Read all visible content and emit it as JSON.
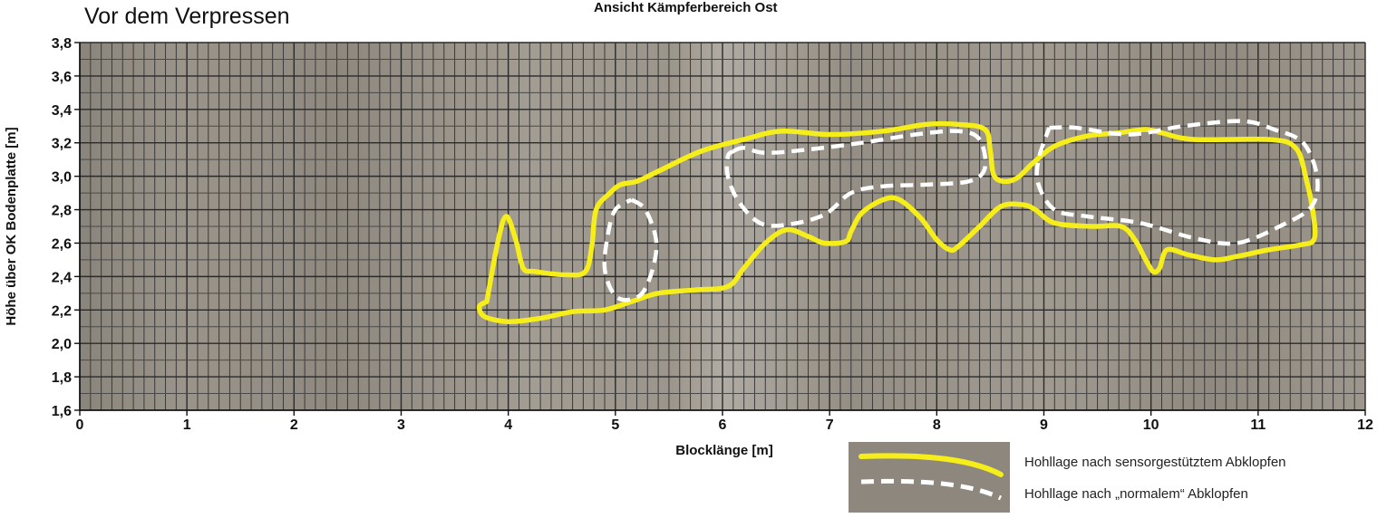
{
  "heading": "Vor dem Verpressen",
  "subtitle": "Ansicht Kämpferbereich Ost",
  "chart_data": {
    "type": "line",
    "title": "Ansicht Kämpferbereich Ost",
    "xlabel": "Blocklänge [m]",
    "ylabel": "Höhe über OK Bodenplatte [m]",
    "xlim": [
      0,
      12
    ],
    "ylim": [
      1.6,
      3.8
    ],
    "x_ticks": [
      "0",
      "1",
      "2",
      "3",
      "4",
      "5",
      "6",
      "7",
      "8",
      "9",
      "10",
      "11",
      "12"
    ],
    "y_ticks": [
      "1,6",
      "1,8",
      "2,0",
      "2,2",
      "2,4",
      "2,6",
      "2,8",
      "3,0",
      "3,2",
      "3,4",
      "3,6",
      "3,8"
    ],
    "grid": true,
    "legend_position": "bottom-right",
    "series": [
      {
        "name": "Hohllage nach sensorgestütztem Abklopfen",
        "color": "#f6ee1a",
        "style": "solid",
        "points": [
          [
            3.8,
            2.25
          ],
          [
            3.9,
            2.6
          ],
          [
            3.98,
            2.76
          ],
          [
            4.07,
            2.62
          ],
          [
            4.14,
            2.45
          ],
          [
            4.25,
            2.43
          ],
          [
            4.55,
            2.41
          ],
          [
            4.72,
            2.43
          ],
          [
            4.78,
            2.58
          ],
          [
            4.82,
            2.8
          ],
          [
            4.95,
            2.9
          ],
          [
            5.05,
            2.95
          ],
          [
            5.2,
            2.97
          ],
          [
            5.4,
            3.03
          ],
          [
            5.8,
            3.15
          ],
          [
            6.2,
            3.22
          ],
          [
            6.55,
            3.27
          ],
          [
            7.0,
            3.25
          ],
          [
            7.5,
            3.27
          ],
          [
            7.9,
            3.31
          ],
          [
            8.2,
            3.31
          ],
          [
            8.45,
            3.28
          ],
          [
            8.5,
            3.15
          ],
          [
            8.53,
            3.01
          ],
          [
            8.62,
            2.97
          ],
          [
            8.75,
            2.99
          ],
          [
            8.9,
            3.08
          ],
          [
            9.1,
            3.18
          ],
          [
            9.4,
            3.24
          ],
          [
            9.7,
            3.26
          ],
          [
            9.95,
            3.28
          ],
          [
            10.1,
            3.26
          ],
          [
            10.4,
            3.22
          ],
          [
            11.1,
            3.22
          ],
          [
            11.35,
            3.17
          ],
          [
            11.45,
            2.98
          ],
          [
            11.52,
            2.75
          ],
          [
            11.52,
            2.62
          ],
          [
            11.4,
            2.59
          ],
          [
            11.1,
            2.56
          ],
          [
            10.8,
            2.52
          ],
          [
            10.6,
            2.5
          ],
          [
            10.35,
            2.53
          ],
          [
            10.15,
            2.56
          ],
          [
            10.08,
            2.45
          ],
          [
            10.02,
            2.43
          ],
          [
            9.95,
            2.5
          ],
          [
            9.85,
            2.62
          ],
          [
            9.72,
            2.7
          ],
          [
            9.45,
            2.7
          ],
          [
            9.1,
            2.72
          ],
          [
            8.92,
            2.8
          ],
          [
            8.8,
            2.83
          ],
          [
            8.6,
            2.82
          ],
          [
            8.4,
            2.7
          ],
          [
            8.2,
            2.58
          ],
          [
            8.12,
            2.56
          ],
          [
            8.0,
            2.62
          ],
          [
            7.85,
            2.75
          ],
          [
            7.65,
            2.86
          ],
          [
            7.5,
            2.86
          ],
          [
            7.3,
            2.78
          ],
          [
            7.2,
            2.67
          ],
          [
            7.15,
            2.61
          ],
          [
            6.95,
            2.6
          ],
          [
            6.8,
            2.64
          ],
          [
            6.6,
            2.68
          ],
          [
            6.4,
            2.6
          ],
          [
            6.2,
            2.45
          ],
          [
            6.05,
            2.34
          ],
          [
            5.75,
            2.32
          ],
          [
            5.4,
            2.3
          ],
          [
            5.15,
            2.25
          ],
          [
            4.9,
            2.2
          ],
          [
            4.6,
            2.19
          ],
          [
            4.3,
            2.15
          ],
          [
            4.0,
            2.13
          ],
          [
            3.78,
            2.16
          ],
          [
            3.73,
            2.22
          ],
          [
            3.8,
            2.25
          ]
        ]
      },
      {
        "name": "Hohllage nach „normalem“ Abklopfen",
        "color": "#ffffff",
        "style": "dashed",
        "shapes": [
          [
            [
              5.15,
              2.86
            ],
            [
              5.28,
              2.8
            ],
            [
              5.38,
              2.62
            ],
            [
              5.35,
              2.45
            ],
            [
              5.25,
              2.3
            ],
            [
              5.1,
              2.26
            ],
            [
              4.98,
              2.3
            ],
            [
              4.9,
              2.45
            ],
            [
              4.93,
              2.65
            ],
            [
              5.0,
              2.8
            ],
            [
              5.15,
              2.86
            ]
          ],
          [
            [
              6.1,
              3.15
            ],
            [
              6.2,
              3.17
            ],
            [
              6.4,
              3.14
            ],
            [
              6.8,
              3.16
            ],
            [
              7.3,
              3.2
            ],
            [
              7.8,
              3.25
            ],
            [
              8.2,
              3.27
            ],
            [
              8.4,
              3.22
            ],
            [
              8.45,
              3.05
            ],
            [
              8.3,
              2.97
            ],
            [
              7.9,
              2.95
            ],
            [
              7.5,
              2.94
            ],
            [
              7.2,
              2.9
            ],
            [
              6.95,
              2.77
            ],
            [
              6.6,
              2.71
            ],
            [
              6.35,
              2.72
            ],
            [
              6.15,
              2.85
            ],
            [
              6.05,
              3.0
            ],
            [
              6.05,
              3.12
            ],
            [
              6.1,
              3.15
            ]
          ],
          [
            [
              9.05,
              3.29
            ],
            [
              9.3,
              3.29
            ],
            [
              9.8,
              3.25
            ],
            [
              10.3,
              3.3
            ],
            [
              10.85,
              3.33
            ],
            [
              11.15,
              3.28
            ],
            [
              11.42,
              3.2
            ],
            [
              11.55,
              3.0
            ],
            [
              11.5,
              2.82
            ],
            [
              11.2,
              2.7
            ],
            [
              10.8,
              2.6
            ],
            [
              10.4,
              2.63
            ],
            [
              9.9,
              2.72
            ],
            [
              9.4,
              2.76
            ],
            [
              9.1,
              2.8
            ],
            [
              8.95,
              2.95
            ],
            [
              8.95,
              3.1
            ],
            [
              9.05,
              3.29
            ]
          ]
        ]
      }
    ]
  }
}
